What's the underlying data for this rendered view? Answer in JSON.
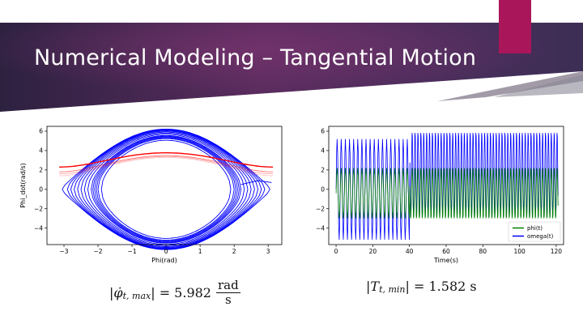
{
  "slide": {
    "title": "Numerical Modeling – Tangential Motion",
    "colors": {
      "banner_dark": "#2e2240",
      "banner_light": "#6b3166",
      "accent_tab": "#a9165a"
    }
  },
  "chart_data": [
    {
      "type": "line",
      "title": "",
      "xlabel": "Phi(rad)",
      "ylabel": "Phi_dot(rad/s)",
      "xlim": [
        -3.5,
        3.4
      ],
      "ylim": [
        -5.7,
        6.5
      ],
      "xticks": [
        -3,
        -2,
        -1,
        0,
        1,
        2,
        3
      ],
      "yticks": [
        -4,
        -2,
        0,
        2,
        4,
        6
      ],
      "series": [
        {
          "color": "#0000ff",
          "amplitudes": [
            1.9,
            2.0,
            2.05,
            2.1,
            2.15,
            2.2,
            2.3,
            2.4,
            2.5,
            2.6,
            2.7,
            2.8,
            2.9,
            3.05
          ]
        },
        {
          "color": "#ff0000",
          "rotation_speed_min": [
            2.3,
            1.8,
            1.6,
            1.4
          ]
        }
      ],
      "grid": false
    },
    {
      "type": "line",
      "title": "",
      "xlabel": "Time(s)",
      "ylabel": "",
      "xlim": [
        -4,
        124
      ],
      "ylim": [
        -5.7,
        6.5
      ],
      "xticks": [
        0,
        20,
        40,
        60,
        80,
        100,
        120
      ],
      "yticks": [
        -4,
        -2,
        0,
        2,
        4,
        6
      ],
      "legend_position": "bottom-right",
      "series": [
        {
          "name": "phi(t)",
          "color": "#008000",
          "range_before_40s": [
            -3,
            2.2
          ],
          "range_after_40s": [
            -3.1,
            2.3
          ]
        },
        {
          "name": "omega(t)",
          "color": "#0000ff",
          "range_before_40s": [
            -5.2,
            5.2
          ],
          "range_after_40s": [
            -3,
            6
          ]
        }
      ],
      "grid": false
    }
  ],
  "formulas": {
    "left": {
      "lhs_subscript": "t, max",
      "value": "= 5.982",
      "unit_num": "rad",
      "unit_den": "s"
    },
    "right": {
      "lhs_symbol": "T",
      "lhs_subscript": "t, min",
      "value": "= 1.582 s"
    }
  }
}
